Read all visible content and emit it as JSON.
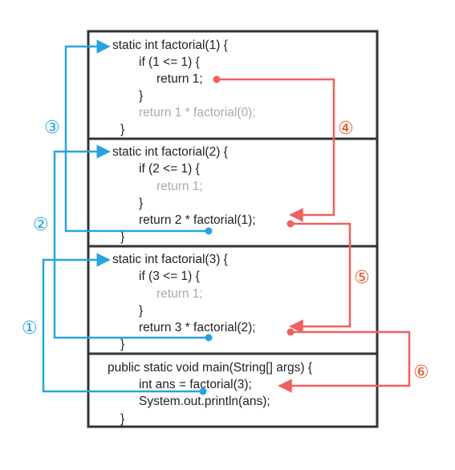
{
  "frames": [
    {
      "id": "factorial-1",
      "lines": [
        {
          "text": "static int factorial(1) {",
          "indent": 0,
          "dim": false
        },
        {
          "text": "if (1 <= 1) {",
          "indent": 1,
          "dim": false
        },
        {
          "text": "return 1;",
          "indent": 2,
          "dim": false
        },
        {
          "text": "}",
          "indent": 1,
          "dim": false
        },
        {
          "text": "return 1 * factorial(0);",
          "indent": 1,
          "dim": true
        },
        {
          "text": "}",
          "indent": 0,
          "dim": false
        }
      ]
    },
    {
      "id": "factorial-2",
      "lines": [
        {
          "text": "static int factorial(2) {",
          "indent": 0,
          "dim": false
        },
        {
          "text": "if (2 <= 1) {",
          "indent": 1,
          "dim": false
        },
        {
          "text": "return 1;",
          "indent": 2,
          "dim": true
        },
        {
          "text": "}",
          "indent": 1,
          "dim": false
        },
        {
          "text": "return 2 * factorial(1);",
          "indent": 1,
          "dim": false
        },
        {
          "text": "}",
          "indent": 0,
          "dim": false
        }
      ]
    },
    {
      "id": "factorial-3",
      "lines": [
        {
          "text": "static int factorial(3) {",
          "indent": 0,
          "dim": false
        },
        {
          "text": "if (3 <= 1) {",
          "indent": 1,
          "dim": false
        },
        {
          "text": "return 1;",
          "indent": 2,
          "dim": true
        },
        {
          "text": "}",
          "indent": 1,
          "dim": false
        },
        {
          "text": "return 3 * factorial(2);",
          "indent": 1,
          "dim": false
        },
        {
          "text": "}",
          "indent": 0,
          "dim": false
        }
      ]
    },
    {
      "id": "main",
      "lines": [
        {
          "text": "public static void main(String[] args) {",
          "indent": 0,
          "dim": false
        },
        {
          "text": "int ans = factorial(3);",
          "indent": 1,
          "dim": false
        },
        {
          "text": "System.out.println(ans);",
          "indent": 1,
          "dim": false
        },
        {
          "text": "}",
          "indent": 0,
          "dim": false
        }
      ]
    }
  ],
  "call_labels": [
    "①",
    "②",
    "③"
  ],
  "return_labels": [
    "④",
    "⑤",
    "⑥"
  ],
  "colors": {
    "call": "#29a3e0",
    "return": "#f06060",
    "call_label": "#29a3e0",
    "return_label": "#e8562a",
    "frame_border": "#333333",
    "code": "#222222",
    "dim_code": "#aaaaaa"
  }
}
